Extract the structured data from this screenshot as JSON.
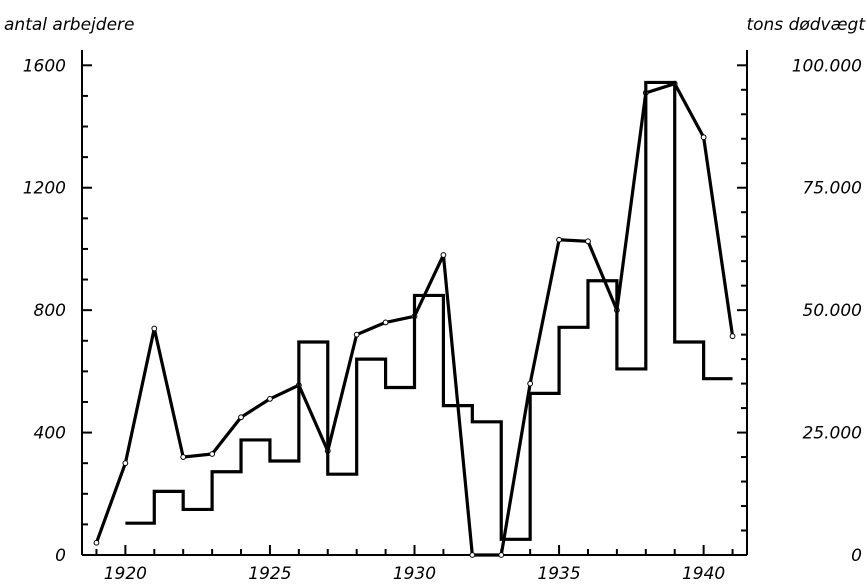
{
  "chart_data": {
    "type": "line",
    "title": "",
    "ylabel_left": "antal arbejdere",
    "ylabel_right": "tons dødvægt",
    "xlim": [
      1918.5,
      1941.5
    ],
    "ylim_left": [
      0,
      1650
    ],
    "ylim_right": [
      0,
      103125
    ],
    "xticks": [
      1920,
      1925,
      1930,
      1935,
      1940
    ],
    "xtick_labels": [
      "1920",
      "1925",
      "1930",
      "1935",
      "1940"
    ],
    "yticks_left": [
      0,
      400,
      800,
      1200,
      1600
    ],
    "yticks_left_labels": [
      "0",
      "400",
      "800",
      "1200",
      "1600"
    ],
    "yticks_right": [
      0,
      25000,
      50000,
      75000,
      100000
    ],
    "yticks_right_labels": [
      "0",
      "25.000",
      "50.000",
      "75.000",
      "100.000"
    ],
    "grid": false,
    "series": [
      {
        "axis": "left",
        "style": "line-markers",
        "x": [
          1919,
          1920,
          1921,
          1922,
          1923,
          1924,
          1925,
          1926,
          1927,
          1928,
          1929,
          1930,
          1931,
          1932,
          1933,
          1934,
          1935,
          1936,
          1937,
          1938,
          1939,
          1940,
          1941
        ],
        "y": [
          40,
          300,
          740,
          320,
          330,
          450,
          510,
          555,
          340,
          720,
          760,
          780,
          980,
          0,
          0,
          560,
          1030,
          1025,
          800,
          1510,
          1540,
          1365,
          715
        ]
      },
      {
        "axis": "right",
        "style": "step",
        "x": [
          1920,
          1921,
          1922,
          1923,
          1924,
          1925,
          1926,
          1927,
          1928,
          1929,
          1930,
          1931,
          1932,
          1933,
          1934,
          1935,
          1936,
          1937,
          1938,
          1939,
          1940
        ],
        "y": [
          6500,
          13000,
          9300,
          17000,
          23500,
          19200,
          43500,
          16500,
          40000,
          34200,
          53000,
          30500,
          27200,
          3200,
          33000,
          46500,
          56000,
          38000,
          96500,
          43500,
          36000
        ]
      }
    ]
  }
}
